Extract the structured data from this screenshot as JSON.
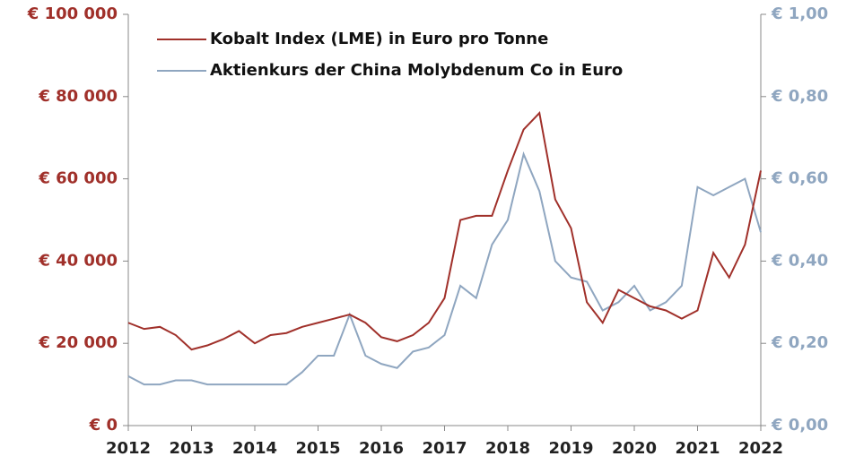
{
  "chart_data": {
    "type": "line",
    "x": [
      2012,
      2012.25,
      2012.5,
      2012.75,
      2013,
      2013.25,
      2013.5,
      2013.75,
      2014,
      2014.25,
      2014.5,
      2014.75,
      2015,
      2015.25,
      2015.5,
      2015.75,
      2016,
      2016.25,
      2016.5,
      2016.75,
      2017,
      2017.25,
      2017.5,
      2017.75,
      2018,
      2018.25,
      2018.5,
      2018.75,
      2019,
      2019.25,
      2019.5,
      2019.75,
      2020,
      2020.25,
      2020.5,
      2020.75,
      2021,
      2021.25,
      2021.5,
      2021.75,
      2022
    ],
    "series": [
      {
        "name": "Kobalt Index (LME) in Euro pro Tonne",
        "color": "#a0302a",
        "values": [
          25000,
          23500,
          24000,
          22000,
          18500,
          19500,
          21000,
          23000,
          20000,
          22000,
          22500,
          24000,
          25000,
          26000,
          27000,
          25000,
          21500,
          20500,
          22000,
          25000,
          31000,
          50000,
          51000,
          51000,
          62000,
          72000,
          76000,
          55000,
          48000,
          30000,
          25000,
          33000,
          31000,
          29000,
          28000,
          26000,
          28000,
          42000,
          36000,
          44000,
          62000
        ]
      },
      {
        "name": "Aktienkurs der China Molybdenum Co in Euro",
        "color": "#8fa6c0",
        "axis": "y2",
        "values": [
          0.12,
          0.1,
          0.1,
          0.11,
          0.11,
          0.1,
          0.1,
          0.1,
          0.1,
          0.1,
          0.1,
          0.13,
          0.17,
          0.17,
          0.27,
          0.17,
          0.15,
          0.14,
          0.18,
          0.19,
          0.22,
          0.34,
          0.31,
          0.44,
          0.5,
          0.66,
          0.57,
          0.4,
          0.36,
          0.35,
          0.28,
          0.3,
          0.34,
          0.28,
          0.3,
          0.34,
          0.58,
          0.56,
          0.58,
          0.6,
          0.47
        ]
      }
    ],
    "xlim": [
      2012,
      2022
    ],
    "xticks": [
      2012,
      2013,
      2014,
      2015,
      2016,
      2017,
      2018,
      2019,
      2020,
      2021,
      2022
    ],
    "ylim": [
      0,
      100000
    ],
    "yticks": [
      {
        "value": 0,
        "label": "€ 0"
      },
      {
        "value": 20000,
        "label": "€ 20 000"
      },
      {
        "value": 40000,
        "label": "€ 40 000"
      },
      {
        "value": 60000,
        "label": "€ 60 000"
      },
      {
        "value": 80000,
        "label": "€ 80 000"
      },
      {
        "value": 100000,
        "label": "€ 100 000"
      }
    ],
    "y2lim": [
      0,
      1
    ],
    "y2ticks": [
      {
        "value": 0,
        "label": "€ 0,00"
      },
      {
        "value": 0.2,
        "label": "€ 0,20"
      },
      {
        "value": 0.4,
        "label": "€ 0,40"
      },
      {
        "value": 0.6,
        "label": "€ 0,60"
      },
      {
        "value": 0.8,
        "label": "€ 0,80"
      },
      {
        "value": 1,
        "label": "€ 1,00"
      }
    ],
    "legend": "top-left"
  }
}
